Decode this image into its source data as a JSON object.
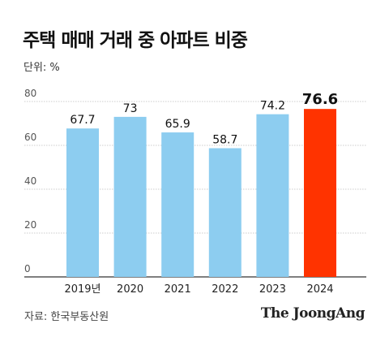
{
  "title": "주택 매매 거래 중 아파트 비중",
  "unit_label": "단위: %",
  "source": "자료: 한국부동산원",
  "brand": "The JoongAng",
  "colors": {
    "bar": "#8dcdf0",
    "highlight": "#ff3300",
    "grid": "#999999",
    "axis": "#333333"
  },
  "chart_data": {
    "type": "bar",
    "categories": [
      "2019년",
      "2020",
      "2021",
      "2022",
      "2023",
      "2024"
    ],
    "values": [
      67.7,
      73,
      65.9,
      58.7,
      74.2,
      76.6
    ],
    "value_labels": [
      "67.7",
      "73",
      "65.9",
      "58.7",
      "74.2",
      "76.6"
    ],
    "highlight_index": 5,
    "ylim": [
      0,
      80
    ],
    "yticks": [
      0,
      20,
      40,
      60,
      80
    ],
    "ytick_labels": [
      "0",
      "20",
      "40",
      "60",
      "80"
    ],
    "grid": true,
    "legend": "none"
  }
}
